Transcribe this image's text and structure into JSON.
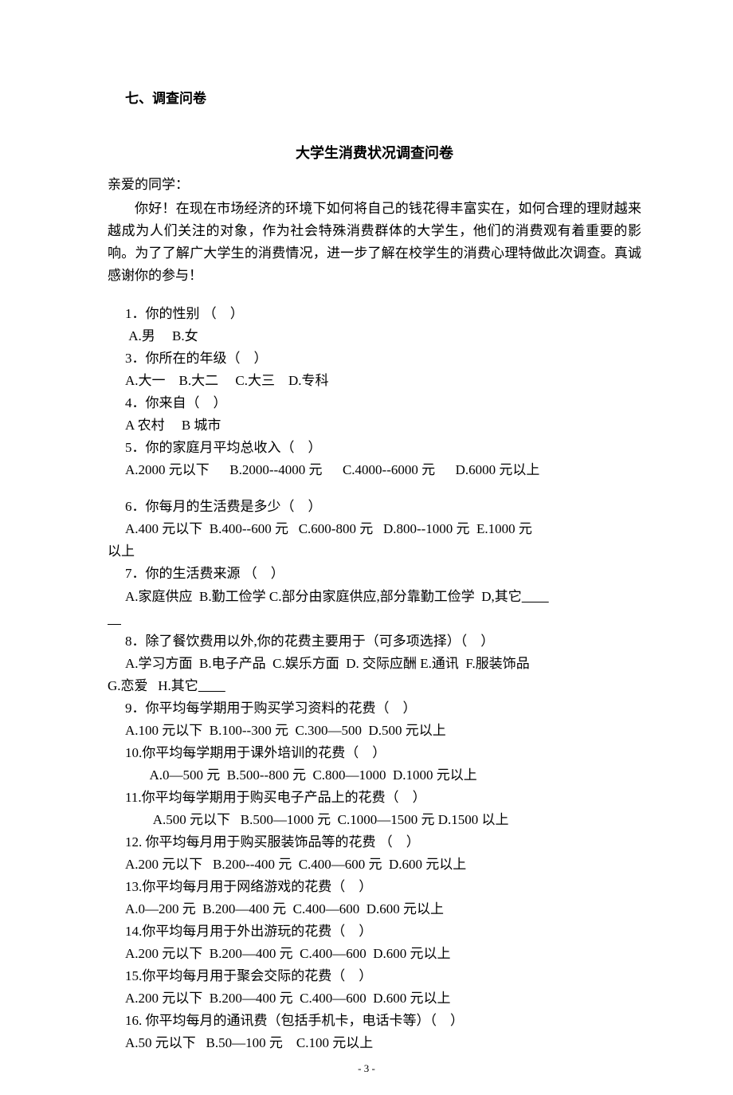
{
  "section_heading": "七、调查问卷",
  "title": "大学生消费状况调查问卷",
  "greeting": "亲爱的同学：",
  "intro": "你好！在现在市场经济的环境下如何将自己的钱花得丰富实在，如何合理的理财越来越成为人们关注的对象，作为社会特殊消费群体的大学生，他们的消费观有着重要的影响。为了了解广大学生的消费情况，进一步了解在校学生的消费心理特做此次调查。真诚感谢你的参与！",
  "questions": [
    {
      "prompt": "1．你的性别 （　）",
      "options": " A.男　 B.女"
    },
    {
      "prompt": "3．你所在的年级（　）",
      "options": "A.大一　B.大二　 C.大三　D.专科"
    },
    {
      "prompt": "4．你来自（　）",
      "options": "A 农村　 B 城市"
    },
    {
      "prompt": "5．你的家庭月平均总收入（　）",
      "options": "A.2000 元以下　  B.2000--4000 元　  C.4000--6000 元　  D.6000 元以上"
    },
    {
      "prompt": "6．你每月的生活费是多少（　）",
      "options": "A.400 元以下  B.400--600 元   C.600-800 元   D.800--1000 元  E.1000 元以上",
      "wrap": true
    },
    {
      "prompt": "7．你的生活费来源 （　）",
      "options": "A.家庭供应  B.勤工俭学 C.部分由家庭供应,部分靠勤工俭学  D,其它",
      "underline": true,
      "undertext": "　　"
    },
    {
      "prompt": "8．除了餐饮费用以外,你的花费主要用于（可多项选择）（　）",
      "options": "A.学习方面  B.电子产品  C.娱乐方面  D. 交际应酬 E.通讯  F.服装饰品  G.恋爱   H.其它",
      "wrap": true,
      "underline": true,
      "undertext": "　　"
    },
    {
      "prompt": "9．你平均每学期用于购买学习资料的花费（　）",
      "options": "A.100 元以下  B.100--300 元  C.300—500  D.500 元以上"
    },
    {
      "prompt": "10.你平均每学期用于课外培训的花费（　）",
      "options": "  A.0—500 元  B.500--800 元  C.800—1000  D.1000 元以上",
      "sub": true
    },
    {
      "prompt": "11.你平均每学期用于购买电子产品上的花费（　）",
      "options": "   A.500 元以下   B.500—1000 元  C.1000—1500 元 D.1500 以上",
      "sub": true
    },
    {
      "prompt": "12. 你平均每月用于购买服装饰品等的花费 （　）",
      "options": "A.200 元以下   B.200--400 元  C.400—600 元  D.600 元以上"
    },
    {
      "prompt": "13.你平均每月用于网络游戏的花费（　）",
      "options": "A.0—200 元  B.200—400 元  C.400—600  D.600 元以上"
    },
    {
      "prompt": "14.你平均每月用于外出游玩的花费（　）",
      "options": "A.200 元以下  B.200—400 元  C.400—600  D.600 元以上"
    },
    {
      "prompt": "15.你平均每月用于聚会交际的花费（　）",
      "options": "A.200 元以下  B.200—400 元  C.400—600  D.600 元以上"
    },
    {
      "prompt": "16. 你平均每月的通讯费（包括手机卡，电话卡等）（　）",
      "options": "A.50 元以下   B.50—100 元    C.100 元以上"
    }
  ],
  "page_num": "- 3 -"
}
